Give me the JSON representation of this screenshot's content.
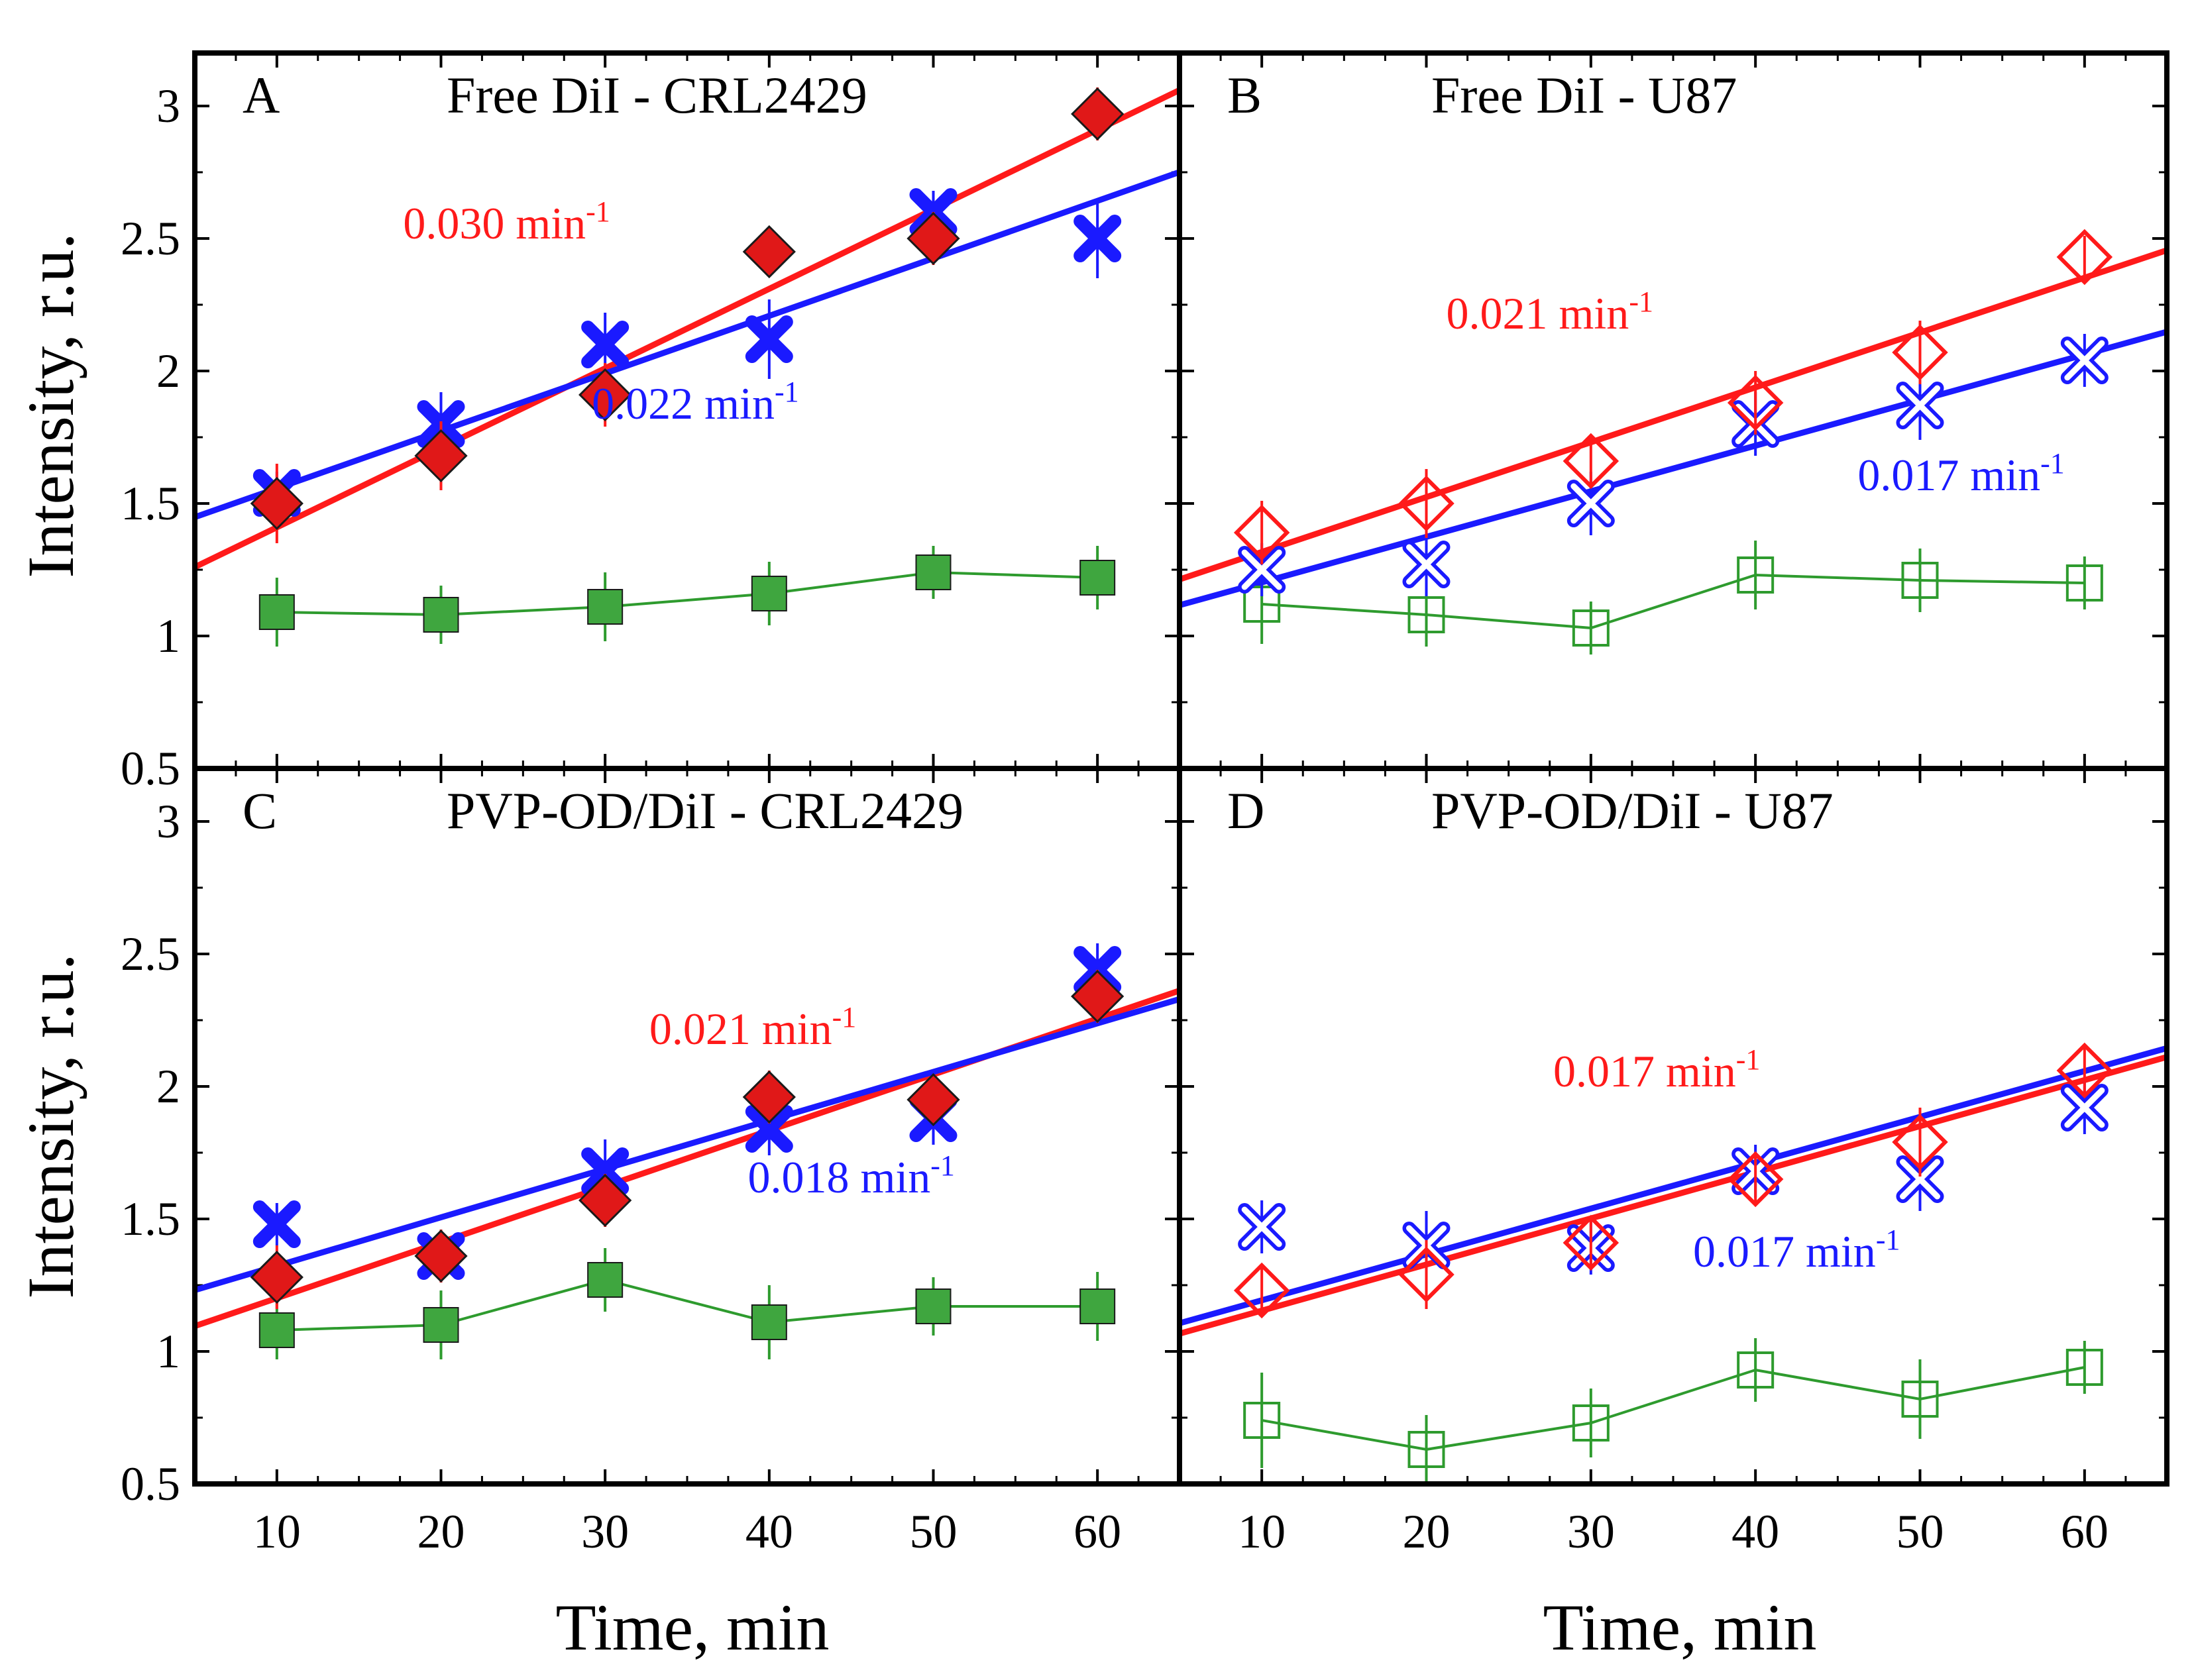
{
  "chart_data": {
    "type": "scatter",
    "layout": "2x2",
    "shared_xlabel": "Time, min",
    "shared_ylabel": "Intensity, r.u.",
    "xlim": [
      5,
      65
    ],
    "ylim": [
      0.5,
      3.2
    ],
    "x_ticks": [
      10,
      20,
      30,
      40,
      50,
      60
    ],
    "y_ticks": [
      0.5,
      1,
      1.5,
      2,
      2.5,
      3
    ],
    "y_tick_labels": [
      "0.5",
      "1",
      "1.5",
      "2",
      "2.5",
      "3"
    ],
    "x_tick_labels": [
      "10",
      "20",
      "30",
      "40",
      "50",
      "60"
    ],
    "colors": {
      "red": "#ff1a1a",
      "blue": "#1a1aff",
      "green": "#2e9b2e",
      "red_fill": "#e01818",
      "blue_fill": "#1c1ce0",
      "green_fill": "#3fa63f"
    },
    "panels": [
      {
        "letter": "A",
        "title": "Free DiI - CRL2429",
        "filled": true,
        "x": [
          10,
          20,
          30,
          40,
          50,
          60
        ],
        "series": [
          {
            "name": "red",
            "marker": "diamond",
            "values": [
              1.5,
              1.68,
              1.91,
              2.45,
              2.5,
              2.97
            ],
            "errors": [
              0.15,
              0.13,
              0.12,
              0.0,
              0.1,
              0.1
            ]
          },
          {
            "name": "blue",
            "marker": "cross",
            "values": [
              1.54,
              1.8,
              2.1,
              2.12,
              2.6,
              2.5
            ],
            "errors": [
              0.08,
              0.12,
              0.12,
              0.15,
              0.08,
              0.15
            ]
          },
          {
            "name": "green",
            "marker": "square",
            "values": [
              1.09,
              1.08,
              1.11,
              1.16,
              1.24,
              1.22
            ],
            "errors": [
              0.13,
              0.11,
              0.13,
              0.12,
              0.1,
              0.12
            ]
          }
        ],
        "fits": [
          {
            "name": "red",
            "intercept": 1.11,
            "slope": 0.03
          },
          {
            "name": "blue",
            "intercept": 1.34,
            "slope": 0.0217
          }
        ],
        "rates": [
          {
            "name": "red",
            "value": "0.030 min",
            "exp": "-1",
            "x": 24,
            "y": 2.5
          },
          {
            "name": "blue",
            "value": "0.022 min",
            "exp": "-1",
            "x": 35.5,
            "y": 1.82
          }
        ]
      },
      {
        "letter": "B",
        "title": "Free DiI - U87",
        "filled": false,
        "x": [
          10,
          20,
          30,
          40,
          50,
          60
        ],
        "series": [
          {
            "name": "red",
            "marker": "diamond",
            "values": [
              1.39,
              1.5,
              1.66,
              1.88,
              2.07,
              2.43
            ],
            "errors": [
              0.12,
              0.13,
              0.1,
              0.12,
              0.12,
              0.08
            ]
          },
          {
            "name": "blue",
            "marker": "cross",
            "values": [
              1.25,
              1.27,
              1.5,
              1.8,
              1.87,
              2.04
            ],
            "errors": [
              0.1,
              0.12,
              0.12,
              0.12,
              0.13,
              0.1
            ]
          },
          {
            "name": "green",
            "marker": "square",
            "values": [
              1.12,
              1.08,
              1.03,
              1.23,
              1.21,
              1.2
            ],
            "errors": [
              0.15,
              0.12,
              0.1,
              0.13,
              0.12,
              0.1
            ]
          }
        ],
        "fits": [
          {
            "name": "red",
            "intercept": 1.11,
            "slope": 0.0207
          },
          {
            "name": "blue",
            "intercept": 1.03,
            "slope": 0.0172
          }
        ],
        "rates": [
          {
            "name": "red",
            "value": "0.021 min",
            "exp": "-1",
            "x": 27.5,
            "y": 2.16
          },
          {
            "name": "blue",
            "value": "0.017 min",
            "exp": "-1",
            "x": 52.5,
            "y": 1.55
          }
        ]
      },
      {
        "letter": "C",
        "title": "PVP-OD/DiI - CRL2429",
        "filled": true,
        "x": [
          10,
          20,
          30,
          40,
          50,
          60
        ],
        "series": [
          {
            "name": "red",
            "marker": "diamond",
            "values": [
              1.28,
              1.36,
              1.57,
              1.96,
              1.95,
              2.34
            ],
            "errors": [
              0.12,
              0.1,
              0.1,
              0.1,
              0.0,
              0.1
            ]
          },
          {
            "name": "blue",
            "marker": "cross",
            "values": [
              1.48,
              1.36,
              1.68,
              1.84,
              1.88,
              2.44
            ],
            "errors": [
              0.08,
              0.1,
              0.12,
              0.1,
              0.1,
              0.1
            ]
          },
          {
            "name": "green",
            "marker": "square",
            "values": [
              1.08,
              1.1,
              1.27,
              1.11,
              1.17,
              1.17
            ],
            "errors": [
              0.11,
              0.13,
              0.12,
              0.14,
              0.11,
              0.13
            ]
          }
        ],
        "fits": [
          {
            "name": "red",
            "intercept": 0.99,
            "slope": 0.0211
          },
          {
            "name": "blue",
            "intercept": 1.14,
            "slope": 0.0183
          }
        ],
        "rates": [
          {
            "name": "red",
            "value": "0.021 min",
            "exp": "-1",
            "x": 39,
            "y": 2.16
          },
          {
            "name": "blue",
            "value": "0.018 min",
            "exp": "-1",
            "x": 45,
            "y": 1.6
          }
        ]
      },
      {
        "letter": "D",
        "title": "PVP-OD/DiI - U87",
        "filled": false,
        "x": [
          10,
          20,
          30,
          40,
          50,
          60
        ],
        "series": [
          {
            "name": "red",
            "marker": "diamond",
            "values": [
              1.23,
              1.29,
              1.41,
              1.65,
              1.79,
              2.06
            ],
            "errors": [
              0.1,
              0.13,
              0.1,
              0.1,
              0.13,
              0.1
            ]
          },
          {
            "name": "blue",
            "marker": "cross",
            "values": [
              1.47,
              1.4,
              1.39,
              1.68,
              1.65,
              1.92
            ],
            "errors": [
              0.1,
              0.13,
              0.1,
              0.1,
              0.12,
              0.1
            ]
          },
          {
            "name": "green",
            "marker": "square",
            "values": [
              0.74,
              0.63,
              0.73,
              0.93,
              0.82,
              0.94
            ],
            "errors": [
              0.18,
              0.13,
              0.13,
              0.12,
              0.15,
              0.1
            ]
          }
        ],
        "fits": [
          {
            "name": "red",
            "intercept": 0.98,
            "slope": 0.0174
          },
          {
            "name": "blue",
            "intercept": 1.02,
            "slope": 0.0173
          }
        ],
        "rates": [
          {
            "name": "red",
            "value": "0.017 min",
            "exp": "-1",
            "x": 34,
            "y": 2.0
          },
          {
            "name": "blue",
            "value": "0.017 min",
            "exp": "-1",
            "x": 42.5,
            "y": 1.32
          }
        ]
      }
    ]
  }
}
